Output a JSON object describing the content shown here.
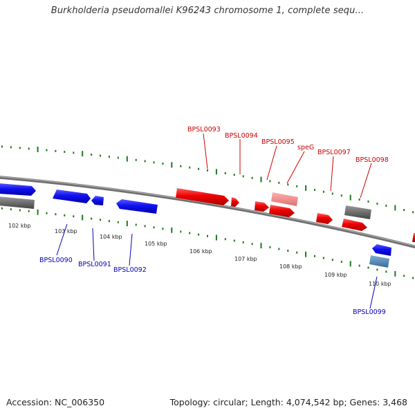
{
  "title": "Burkholderia pseudomallei K96243 chromosome 1, complete sequ...",
  "footer": {
    "accession": "Accession: NC_006350",
    "info": "Topology: circular; Length: 4,074,542 bp; Genes: 3,468"
  },
  "kbp_labels": [
    "102 kbp",
    "103 kbp",
    "104 kbp",
    "105 kbp",
    "106 kbp",
    "107 kbp",
    "108 kbp",
    "109 kbp",
    "110 kbp"
  ],
  "genes_forward": [
    "BPSL0093",
    "BPSL0094",
    "BPSL0095",
    "speG",
    "BPSL0097",
    "BPSL0098"
  ],
  "genes_reverse": [
    "BPSL0090",
    "BPSL0091",
    "BPSL0092",
    "BPSL0099"
  ],
  "colors": {
    "forward_cds": "#ff0000",
    "forward_pseudo": "#f08080",
    "reverse_cds": "#0000ff",
    "reverse_other": "#4682b4",
    "other": "#666666",
    "backbone": "#808080",
    "ticks": "#1a7a1a"
  }
}
